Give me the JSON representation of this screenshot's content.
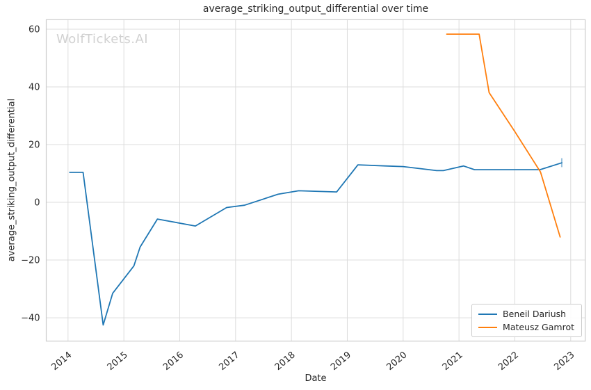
{
  "watermark": "WolfTickets.AI",
  "chart_data": {
    "type": "line",
    "title": "average_striking_output_differential over time",
    "xlabel": "Date",
    "ylabel": "average_striking_output_differential",
    "xlim": [
      2013.61,
      2023.26
    ],
    "ylim": [
      -48.1,
      63.3
    ],
    "grid": true,
    "legend_position": "lower right",
    "xticks": {
      "values": [
        2014,
        2015,
        2016,
        2017,
        2018,
        2019,
        2020,
        2021,
        2022,
        2023
      ],
      "labels": [
        "2014",
        "2015",
        "2016",
        "2017",
        "2018",
        "2019",
        "2020",
        "2021",
        "2022",
        "2023"
      ]
    },
    "yticks": {
      "values": [
        60,
        40,
        20,
        0,
        -20,
        -40
      ],
      "labels": [
        "60",
        "40",
        "20",
        "0",
        "−20",
        "−40"
      ]
    },
    "series": [
      {
        "name": "Beneil Dariush",
        "color": "#1f77b4",
        "x": [
          2014.03,
          2014.27,
          2014.63,
          2014.8,
          2015.18,
          2015.29,
          2015.6,
          2016.28,
          2016.84,
          2017.16,
          2017.76,
          2018.13,
          2018.81,
          2019.19,
          2019.68,
          2020.0,
          2020.6,
          2020.72,
          2021.08,
          2021.28,
          2022.45,
          2022.84
        ],
        "y": [
          10.4,
          10.4,
          -42.5,
          -31.5,
          -22.0,
          -15.5,
          -5.8,
          -8.2,
          -1.8,
          -1.0,
          2.8,
          4.0,
          3.6,
          13.0,
          12.6,
          12.4,
          11.0,
          11.0,
          12.6,
          11.3,
          11.3,
          13.7
        ],
        "end_cap": {
          "x": 2022.84,
          "y_low": 12.2,
          "y_high": 15.3
        }
      },
      {
        "name": "Mateusz Gamrot",
        "color": "#ff7f0e",
        "x": [
          2020.78,
          2021.36,
          2021.54,
          2022.0,
          2022.46,
          2022.81
        ],
        "y": [
          58.3,
          58.3,
          38.0,
          24.5,
          10.5,
          -12.0
        ],
        "end_cap": null
      }
    ],
    "style": {
      "grid_color": "#dcdcdc",
      "spine_color": "#cccccc",
      "text_color": "#262626",
      "watermark_color": "#d1d1d1",
      "background": "#ffffff"
    }
  }
}
